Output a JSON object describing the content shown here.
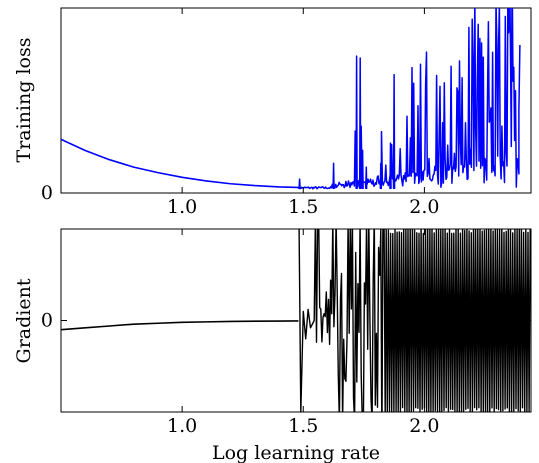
{
  "chart_data": [
    {
      "type": "line",
      "ylabel": "Training loss",
      "xlim": [
        0.5,
        2.44
      ],
      "ylim": [
        0,
        10
      ],
      "x_ticks": [
        {
          "value": 1.0,
          "label": "1.0"
        },
        {
          "value": 1.5,
          "label": "1.5"
        },
        {
          "value": 2.0,
          "label": "2.0"
        }
      ],
      "y_ticks": [
        {
          "value": 0,
          "label": "0"
        }
      ],
      "series": [
        {
          "color": "#0000ff",
          "smooth": {
            "x": [
              0.5,
              0.6,
              0.7,
              0.8,
              0.9,
              1.0,
              1.1,
              1.2,
              1.3,
              1.4,
              1.48
            ],
            "y": [
              2.9,
              2.3,
              1.8,
              1.4,
              1.1,
              0.85,
              0.65,
              0.5,
              0.4,
              0.33,
              0.3
            ]
          },
          "volatile": {
            "x_start": 1.48,
            "x_end": 2.39,
            "noise_start": 1.62,
            "noise_full": 2.3,
            "spikes": [
              {
                "x": 1.485,
                "y": 0.75
              },
              {
                "x": 1.625,
                "y": 1.6
              },
              {
                "x": 1.72,
                "y": 7.4
              },
              {
                "x": 1.735,
                "y": 7.3
              },
              {
                "x": 1.745,
                "y": 2.3
              },
              {
                "x": 1.76,
                "y": 1.4
              },
              {
                "x": 1.82,
                "y": 1.6
              },
              {
                "x": 1.86,
                "y": 2.7
              },
              {
                "x": 1.875,
                "y": 6.4
              }
            ]
          }
        }
      ]
    },
    {
      "type": "line",
      "xlabel": "Log learning rate",
      "ylabel": "Gradient",
      "xlim": [
        0.5,
        2.44
      ],
      "ylim": [
        -1,
        1
      ],
      "x_ticks": [
        {
          "value": 1.0,
          "label": "1.0"
        },
        {
          "value": 1.5,
          "label": "1.5"
        },
        {
          "value": 2.0,
          "label": "2.0"
        }
      ],
      "y_ticks": [
        {
          "value": 0,
          "label": "0"
        }
      ],
      "series": [
        {
          "color": "#000000",
          "smooth": {
            "x": [
              0.5,
              0.6,
              0.7,
              0.8,
              0.9,
              1.0,
              1.1,
              1.2,
              1.3,
              1.4,
              1.48
            ],
            "y": [
              -0.1,
              -0.08,
              -0.06,
              -0.04,
              -0.03,
              -0.02,
              -0.015,
              -0.01,
              -0.008,
              -0.006,
              -0.005
            ]
          },
          "volatile": {
            "x_start": 1.48,
            "x_end": 2.44,
            "transition": 1.83,
            "features": [
              {
                "x": 1.483,
                "y": 1.0
              },
              {
                "x": 1.49,
                "y": -1.0
              },
              {
                "x": 1.5,
                "y": 0.1
              },
              {
                "x": 1.51,
                "y": -0.2
              },
              {
                "x": 1.52,
                "y": 0.12
              },
              {
                "x": 1.53,
                "y": -0.08
              },
              {
                "x": 1.545,
                "y": 0.0
              }
            ]
          }
        }
      ]
    }
  ]
}
